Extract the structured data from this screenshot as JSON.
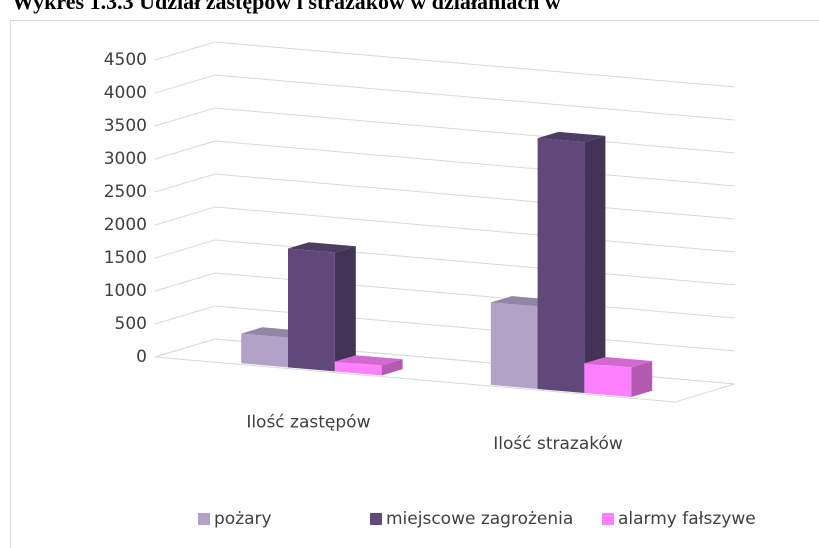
{
  "chart_data": {
    "type": "bar3d",
    "title": "Wykres 1.3.3 Udział zastępów i strażaków w działaniach w",
    "categories": [
      "Ilość zastępów",
      "Ilość strazaków"
    ],
    "series": [
      {
        "name": "pożary",
        "color": "#b3a2c7",
        "values": [
          450,
          1250
        ]
      },
      {
        "name": "miejscowe zagrożenia",
        "color": "#60497a",
        "values": [
          1800,
          3800
        ]
      },
      {
        "name": "alarmy fałszywe",
        "color": "#ff80ff",
        "values": [
          150,
          450
        ]
      }
    ],
    "ylim": [
      0,
      4500
    ],
    "yticks": [
      0,
      500,
      1000,
      1500,
      2000,
      2500,
      3000,
      3500,
      4000,
      4500
    ],
    "grid": true,
    "legend": "bottom"
  }
}
